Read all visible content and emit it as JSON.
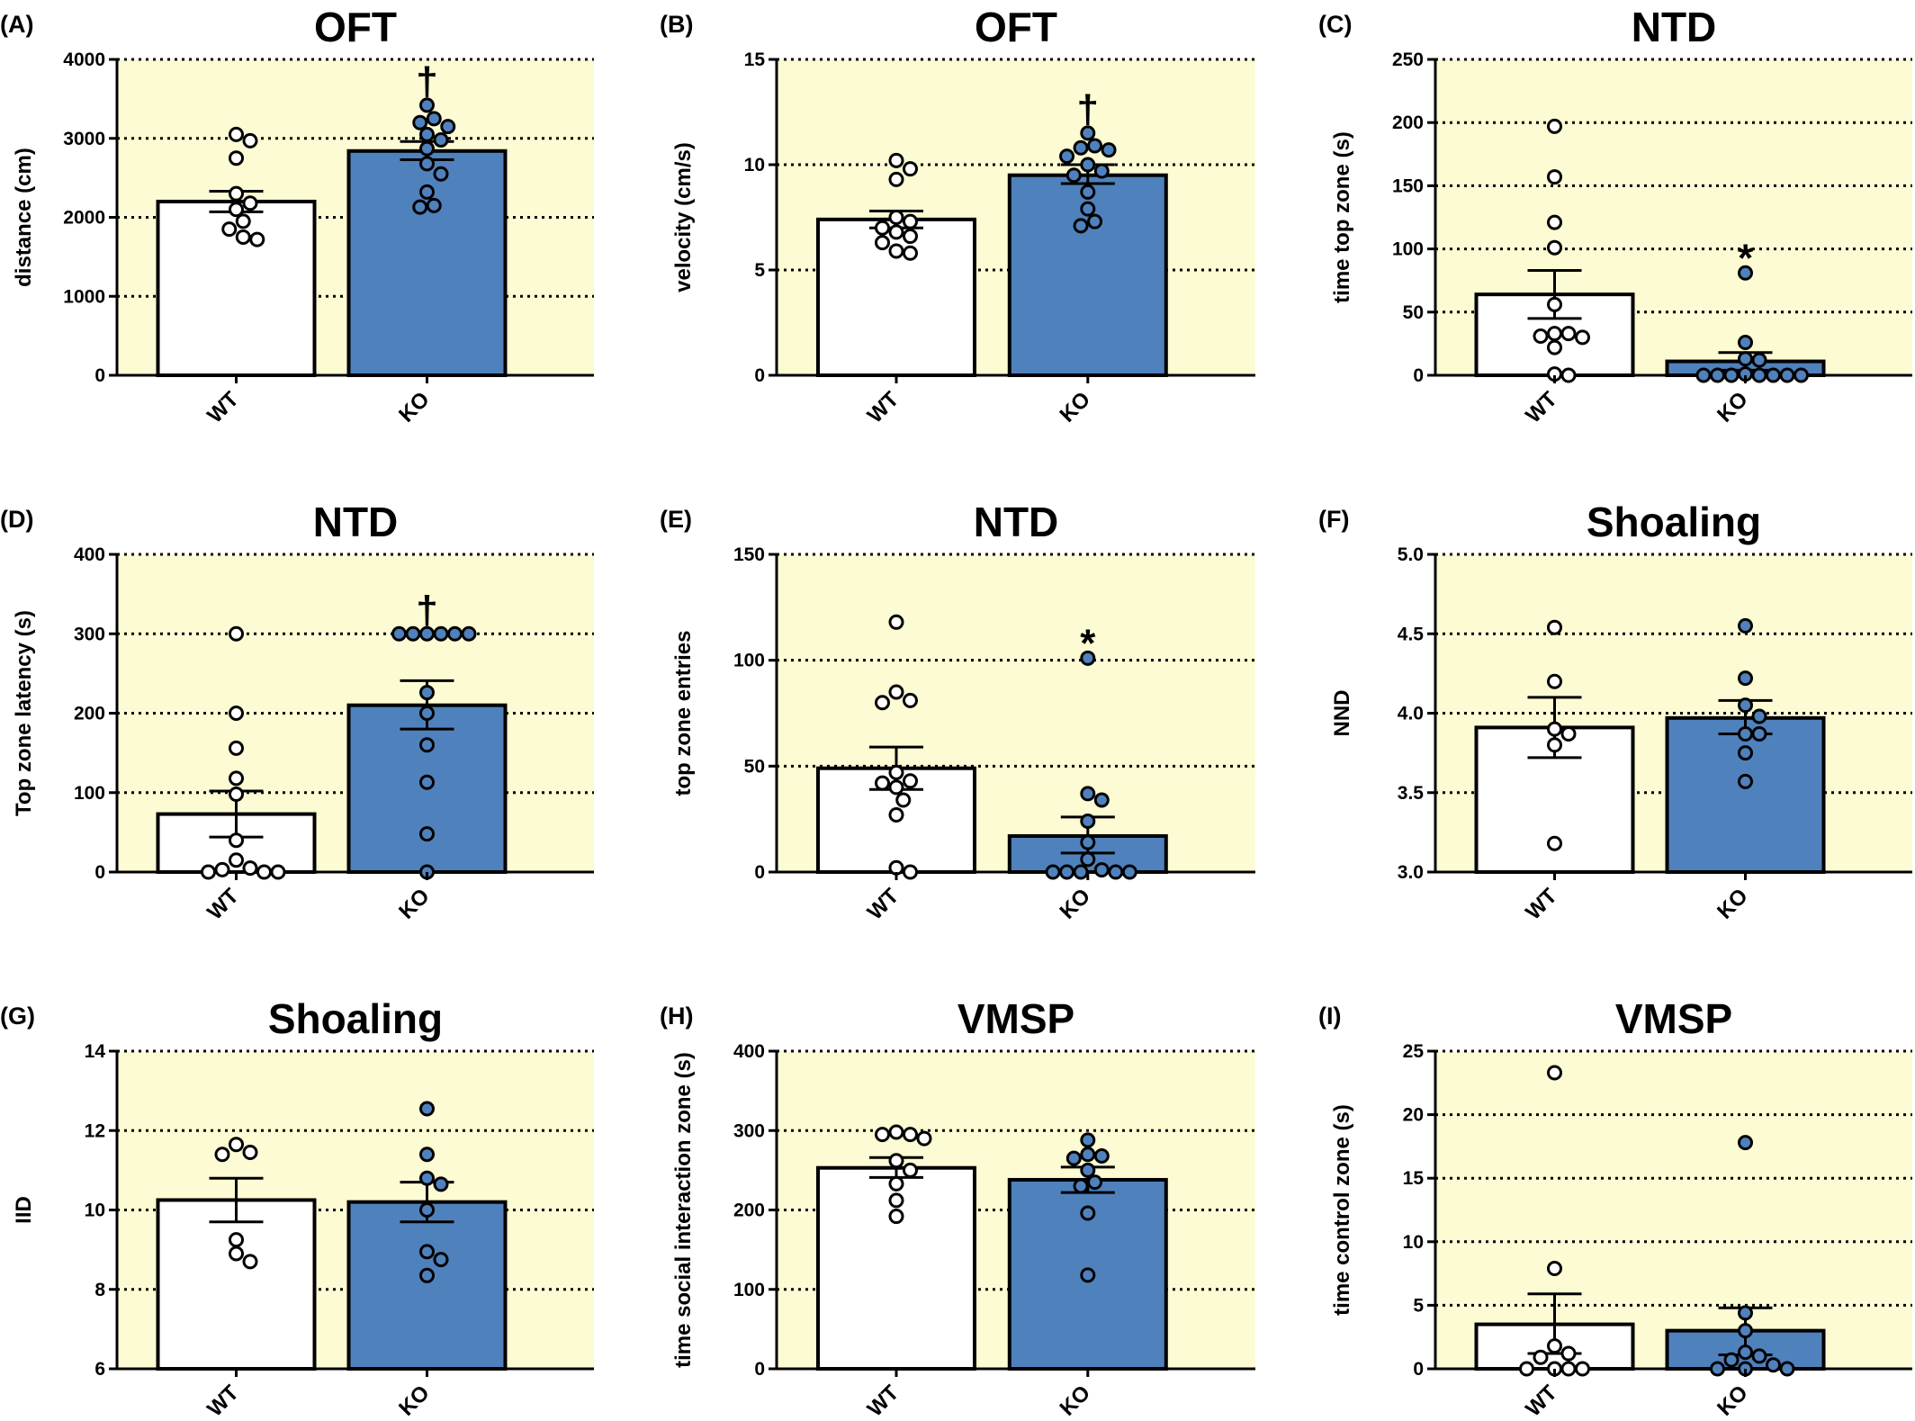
{
  "colors": {
    "plot_background": "#fdfbd3",
    "wt_bar": "#ffffff",
    "ko_bar": "#4f81bd",
    "outline": "#000000"
  },
  "chart_data": [
    {
      "panel": "(A)",
      "title": "OFT",
      "type": "bar",
      "ylabel": "distance (cm)",
      "ylim": [
        0,
        4000
      ],
      "yticks": [
        "0",
        "1000",
        "2000",
        "3000",
        "4000"
      ],
      "ytick_values": [
        0,
        1000,
        2000,
        3000,
        4000
      ],
      "grid": "dotted",
      "categories": [
        "WT",
        "KO"
      ],
      "means": [
        2200,
        2840
      ],
      "sem": [
        [
          2070,
          2330
        ],
        [
          2730,
          2960
        ]
      ],
      "points": [
        [
          3050,
          2970,
          2750,
          2300,
          2180,
          2100,
          1950,
          1850,
          1750,
          1720
        ],
        [
          3420,
          3250,
          3200,
          3150,
          3050,
          2980,
          2870,
          2680,
          2550,
          2320,
          2150,
          2130
        ]
      ],
      "significance": {
        "KO": "†"
      }
    },
    {
      "panel": "(B)",
      "title": "OFT",
      "type": "bar",
      "ylabel": "velocity (cm/s)",
      "ylim": [
        0,
        15
      ],
      "yticks": [
        "0",
        "5",
        "10",
        "15"
      ],
      "ytick_values": [
        0,
        5,
        10,
        15
      ],
      "grid": "dotted",
      "categories": [
        "WT",
        "KO"
      ],
      "means": [
        7.4,
        9.5
      ],
      "sem": [
        [
          7.0,
          7.8
        ],
        [
          9.1,
          10.0
        ]
      ],
      "points": [
        [
          10.2,
          9.8,
          9.3,
          7.5,
          7.3,
          7.0,
          6.8,
          6.6,
          6.3,
          5.9,
          5.8
        ],
        [
          11.5,
          10.9,
          10.8,
          10.7,
          10.4,
          10.0,
          9.7,
          9.5,
          8.7,
          7.9,
          7.3,
          7.1
        ]
      ],
      "significance": {
        "KO": "†"
      }
    },
    {
      "panel": "(C)",
      "title": "NTD",
      "type": "bar",
      "ylabel": "time top zone (s)",
      "ylim": [
        0,
        250
      ],
      "yticks": [
        "0",
        "50",
        "100",
        "150",
        "200",
        "250"
      ],
      "ytick_values": [
        0,
        50,
        100,
        150,
        200,
        250
      ],
      "grid": "dotted",
      "categories": [
        "WT",
        "KO"
      ],
      "means": [
        64,
        11
      ],
      "sem": [
        [
          45,
          83
        ],
        [
          4,
          18
        ]
      ],
      "points": [
        [
          197,
          157,
          121,
          101,
          56,
          33,
          33,
          31,
          30,
          22,
          1,
          0
        ],
        [
          81,
          26,
          13,
          12,
          1,
          0,
          0,
          0,
          0,
          0,
          0,
          0
        ]
      ],
      "significance": {
        "KO": "*"
      }
    },
    {
      "panel": "(D)",
      "title": "NTD",
      "type": "bar",
      "ylabel": "Top zone latency (s)",
      "ylim": [
        0,
        400
      ],
      "yticks": [
        "0",
        "100",
        "200",
        "300",
        "400"
      ],
      "ytick_values": [
        0,
        100,
        200,
        300,
        400
      ],
      "grid": "dotted",
      "categories": [
        "WT",
        "KO"
      ],
      "means": [
        73,
        210
      ],
      "sem": [
        [
          44,
          102
        ],
        [
          180,
          241
        ]
      ],
      "points": [
        [
          300,
          200,
          156,
          118,
          98,
          40,
          15,
          5,
          3,
          0,
          0,
          0
        ],
        [
          300,
          300,
          300,
          300,
          300,
          300,
          226,
          200,
          160,
          113,
          48,
          0
        ]
      ],
      "significance": {
        "KO": "†"
      }
    },
    {
      "panel": "(E)",
      "title": "NTD",
      "type": "bar",
      "ylabel": "top zone entries",
      "ylim": [
        0,
        150
      ],
      "yticks": [
        "0",
        "50",
        "100",
        "150"
      ],
      "ytick_values": [
        0,
        50,
        100,
        150
      ],
      "grid": "dotted",
      "categories": [
        "WT",
        "KO"
      ],
      "means": [
        49,
        17
      ],
      "sem": [
        [
          39,
          59
        ],
        [
          9,
          26
        ]
      ],
      "points": [
        [
          118,
          85,
          81,
          80,
          47,
          43,
          42,
          40,
          34,
          27,
          2,
          0
        ],
        [
          101,
          37,
          34,
          24,
          14,
          6,
          1,
          0,
          0,
          0,
          0,
          0
        ]
      ],
      "significance": {
        "KO": "*"
      }
    },
    {
      "panel": "(F)",
      "title": "Shoaling",
      "type": "bar",
      "ylabel": "NND",
      "ylim": [
        3.0,
        5.0
      ],
      "yticks": [
        "3.0",
        "3.5",
        "4.0",
        "4.5",
        "5.0"
      ],
      "ytick_values": [
        3.0,
        3.5,
        4.0,
        4.5,
        5.0
      ],
      "grid": "dotted",
      "categories": [
        "WT",
        "KO"
      ],
      "means": [
        3.91,
        3.97
      ],
      "sem": [
        [
          3.72,
          4.1
        ],
        [
          3.87,
          4.08
        ]
      ],
      "points": [
        [
          4.54,
          4.2,
          3.9,
          3.87,
          3.8,
          3.18
        ],
        [
          4.55,
          4.22,
          4.05,
          3.98,
          3.87,
          3.87,
          3.75,
          3.57
        ]
      ],
      "significance": {}
    },
    {
      "panel": "(G)",
      "title": "Shoaling",
      "type": "bar",
      "ylabel": "IID",
      "ylim": [
        6,
        14
      ],
      "yticks": [
        "6",
        "8",
        "10",
        "12",
        "14"
      ],
      "ytick_values": [
        6,
        8,
        10,
        12,
        14
      ],
      "grid": "dotted",
      "categories": [
        "WT",
        "KO"
      ],
      "means": [
        10.25,
        10.2
      ],
      "sem": [
        [
          9.7,
          10.8
        ],
        [
          9.7,
          10.7
        ]
      ],
      "points": [
        [
          11.65,
          11.45,
          11.4,
          9.25,
          8.9,
          8.7
        ],
        [
          12.55,
          11.4,
          10.8,
          10.65,
          10.0,
          8.95,
          8.75,
          8.35
        ]
      ],
      "significance": {}
    },
    {
      "panel": "(H)",
      "title": "VMSP",
      "type": "bar",
      "ylabel": "time social interaction zone (s)",
      "ylim": [
        0,
        400
      ],
      "yticks": [
        "0",
        "100",
        "200",
        "300",
        "400"
      ],
      "ytick_values": [
        0,
        100,
        200,
        300,
        400
      ],
      "grid": "dotted",
      "categories": [
        "WT",
        "KO"
      ],
      "means": [
        253,
        238
      ],
      "sem": [
        [
          241,
          266
        ],
        [
          222,
          254
        ]
      ],
      "points": [
        [
          298,
          295,
          295,
          290,
          262,
          250,
          233,
          212,
          192
        ],
        [
          288,
          270,
          268,
          265,
          250,
          235,
          230,
          196,
          118
        ]
      ],
      "significance": {}
    },
    {
      "panel": "(I)",
      "title": "VMSP",
      "type": "bar",
      "ylabel": "time control zone (s)",
      "ylim": [
        0,
        25
      ],
      "yticks": [
        "0",
        "5",
        "10",
        "15",
        "20",
        "25"
      ],
      "ytick_values": [
        0,
        5,
        10,
        15,
        20,
        25
      ],
      "grid": "dotted",
      "categories": [
        "WT",
        "KO"
      ],
      "means": [
        3.5,
        3.0
      ],
      "sem": [
        [
          1.2,
          5.9
        ],
        [
          1.1,
          4.8
        ]
      ],
      "points": [
        [
          23.3,
          7.9,
          1.8,
          1.2,
          0.9,
          0,
          0,
          0,
          0
        ],
        [
          17.8,
          4.4,
          3.0,
          1.3,
          1.0,
          0.7,
          0.3,
          0,
          0,
          0
        ]
      ],
      "significance": {}
    }
  ]
}
